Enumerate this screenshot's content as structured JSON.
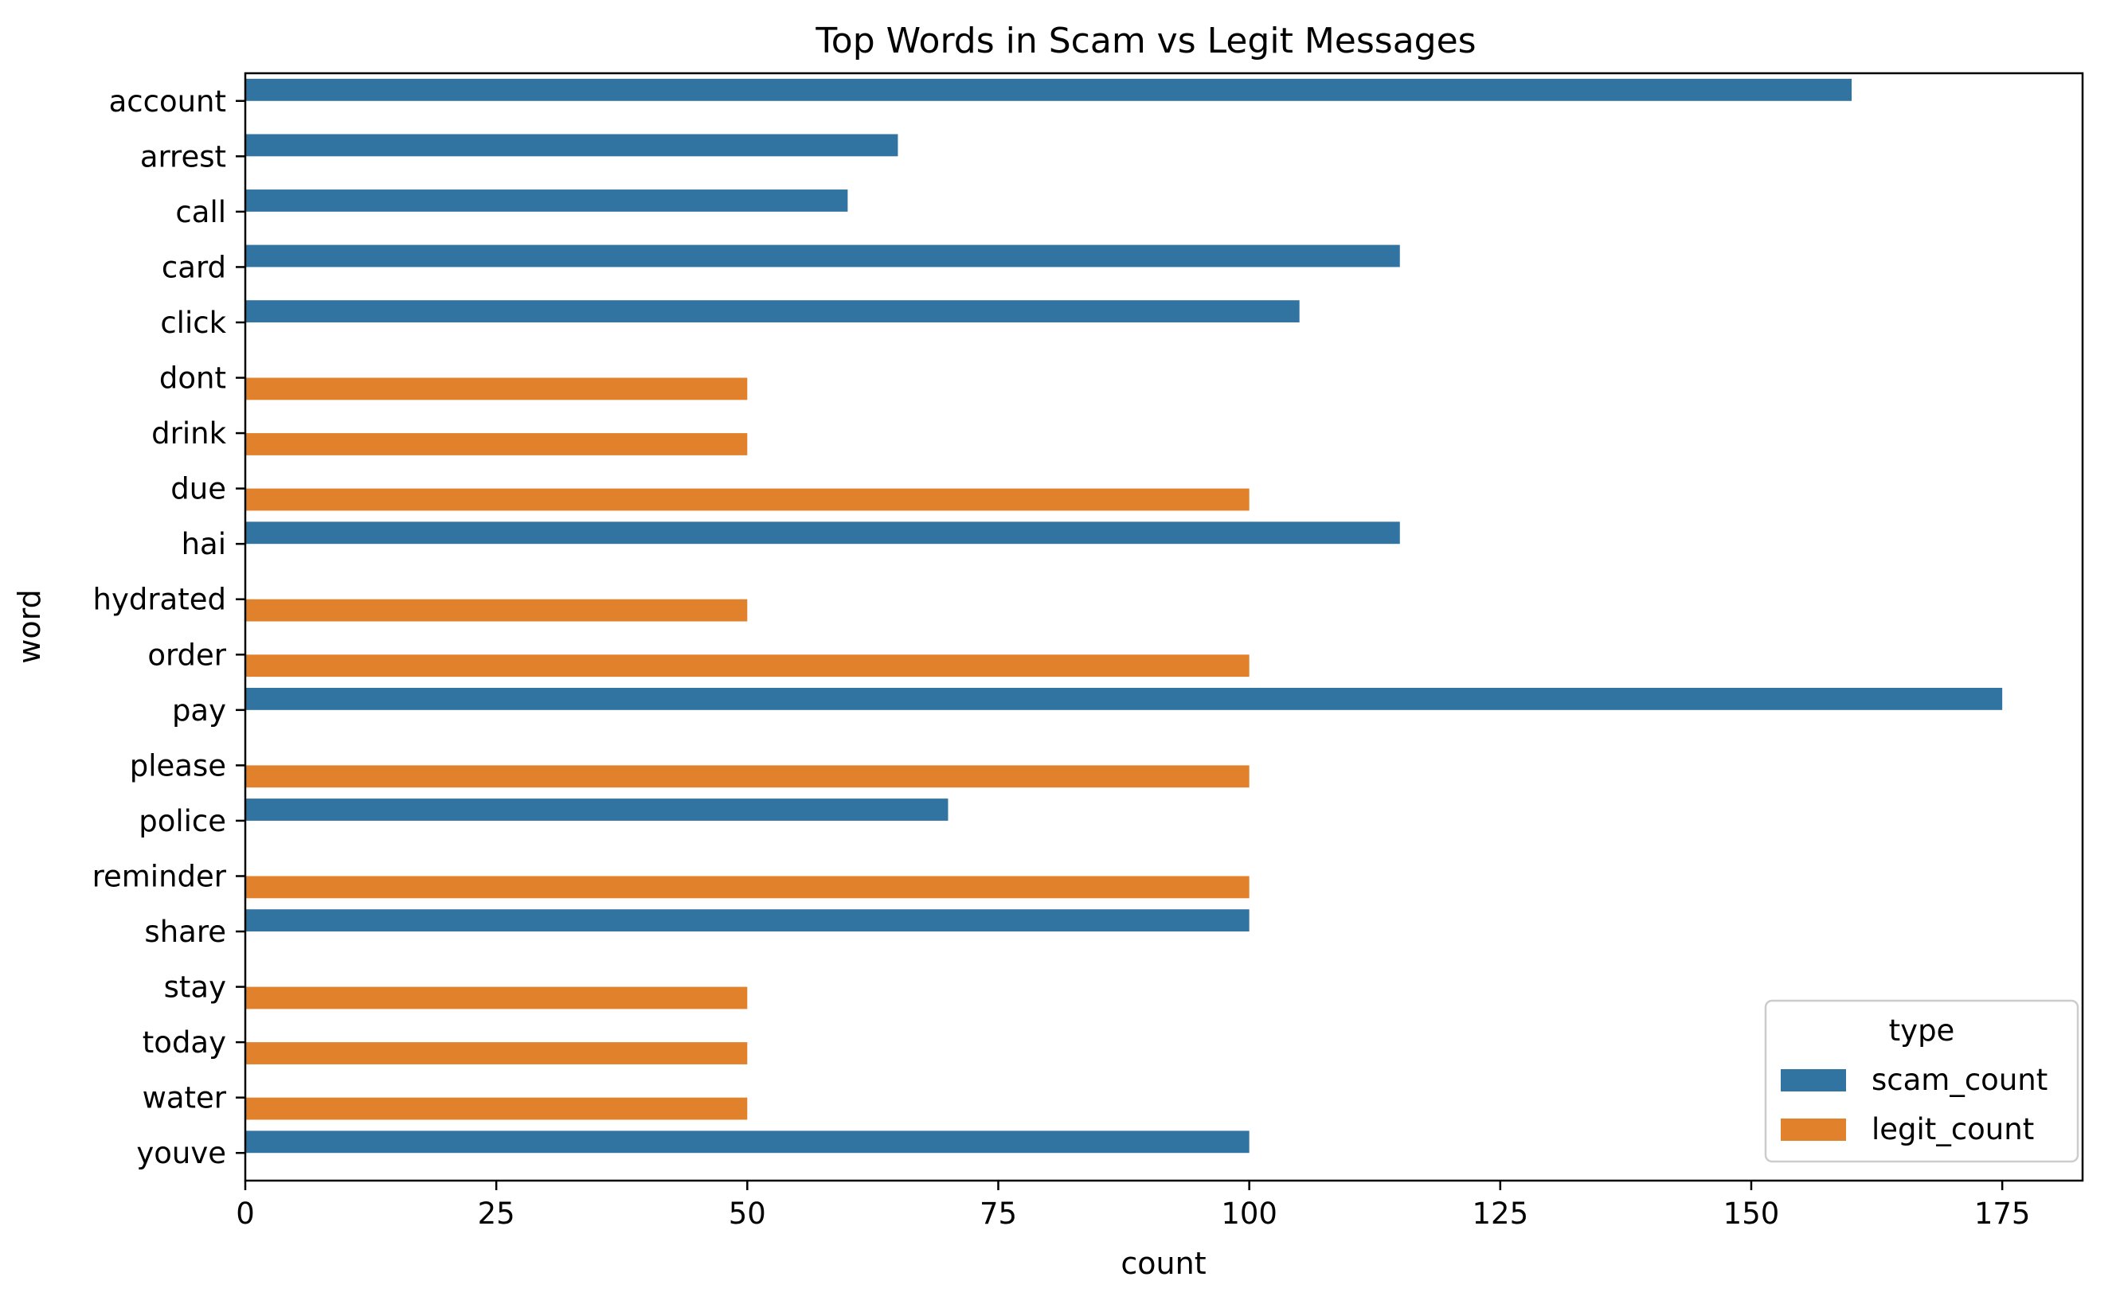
{
  "chart_data": {
    "type": "bar",
    "orientation": "horizontal",
    "title": "Top Words in Scam vs Legit Messages",
    "xlabel": "count",
    "ylabel": "word",
    "xlim": [
      0,
      183
    ],
    "xticks": [
      0,
      25,
      50,
      75,
      100,
      125,
      150,
      175
    ],
    "grid": false,
    "legend": {
      "title": "type",
      "placement": "lower-right"
    },
    "categories": [
      "account",
      "arrest",
      "call",
      "card",
      "click",
      "dont",
      "drink",
      "due",
      "hai",
      "hydrated",
      "order",
      "pay",
      "please",
      "police",
      "reminder",
      "share",
      "stay",
      "today",
      "water",
      "youve"
    ],
    "series": [
      {
        "name": "scam_count",
        "color": "#3274a1",
        "values": [
          160,
          65,
          60,
          115,
          105,
          null,
          null,
          null,
          115,
          null,
          null,
          175,
          null,
          70,
          null,
          100,
          null,
          null,
          null,
          100
        ]
      },
      {
        "name": "legit_count",
        "color": "#e1812c",
        "values": [
          null,
          null,
          null,
          null,
          null,
          50,
          50,
          100,
          null,
          50,
          100,
          null,
          100,
          null,
          100,
          null,
          50,
          50,
          50,
          null
        ]
      }
    ]
  }
}
